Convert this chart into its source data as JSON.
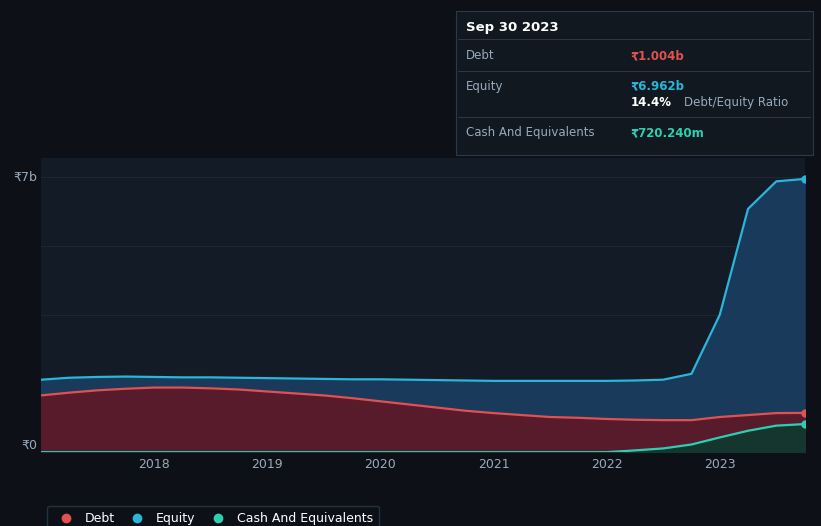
{
  "background_color": "#0d1117",
  "plot_bg_color": "#131b27",
  "grid_color": "#1e2a3a",
  "title_box": {
    "date": "Sep 30 2023",
    "debt_label": "Debt",
    "debt_value": "₹1.004b",
    "debt_color": "#e05252",
    "equity_label": "Equity",
    "equity_value": "₹6.962b",
    "equity_color": "#29b6d8",
    "ratio_value": "14.4%",
    "ratio_label": "Debt/Equity Ratio",
    "cash_label": "Cash And Equivalents",
    "cash_value": "₹720.240m",
    "cash_color": "#2ecfb1"
  },
  "years": [
    2017.0,
    2017.25,
    2017.5,
    2017.75,
    2018.0,
    2018.25,
    2018.5,
    2018.75,
    2019.0,
    2019.25,
    2019.5,
    2019.75,
    2020.0,
    2020.25,
    2020.5,
    2020.75,
    2021.0,
    2021.25,
    2021.5,
    2021.75,
    2022.0,
    2022.25,
    2022.5,
    2022.75,
    2023.0,
    2023.25,
    2023.5,
    2023.75
  ],
  "equity": [
    1.85,
    1.9,
    1.92,
    1.93,
    1.92,
    1.91,
    1.91,
    1.9,
    1.89,
    1.88,
    1.87,
    1.86,
    1.86,
    1.85,
    1.84,
    1.83,
    1.82,
    1.82,
    1.82,
    1.82,
    1.82,
    1.83,
    1.85,
    2.0,
    3.5,
    6.2,
    6.9,
    6.962
  ],
  "debt": [
    1.45,
    1.52,
    1.58,
    1.62,
    1.65,
    1.65,
    1.63,
    1.6,
    1.55,
    1.5,
    1.45,
    1.38,
    1.3,
    1.22,
    1.14,
    1.06,
    1.0,
    0.95,
    0.9,
    0.88,
    0.85,
    0.83,
    0.82,
    0.82,
    0.9,
    0.95,
    1.0,
    1.004
  ],
  "cash": [
    0.005,
    0.005,
    0.005,
    0.005,
    0.005,
    0.005,
    0.005,
    0.005,
    0.005,
    0.005,
    0.005,
    0.005,
    0.005,
    0.005,
    0.005,
    0.005,
    0.005,
    0.005,
    0.005,
    0.005,
    0.005,
    0.05,
    0.1,
    0.2,
    0.38,
    0.55,
    0.68,
    0.72
  ],
  "equity_color": "#29b6d8",
  "equity_fill": "#1a3a5c",
  "debt_color": "#e05252",
  "debt_fill": "#5c1a2a",
  "cash_color": "#2ecfb1",
  "cash_fill": "#0d3a30",
  "ylabel_7b": "₹7b",
  "ylabel_0": "₹0",
  "ylim": [
    0,
    7.5
  ],
  "xtick_labels": [
    "2018",
    "2019",
    "2020",
    "2021",
    "2022",
    "2023"
  ],
  "legend_debt": "Debt",
  "legend_equity": "Equity",
  "legend_cash": "Cash And Equivalents"
}
